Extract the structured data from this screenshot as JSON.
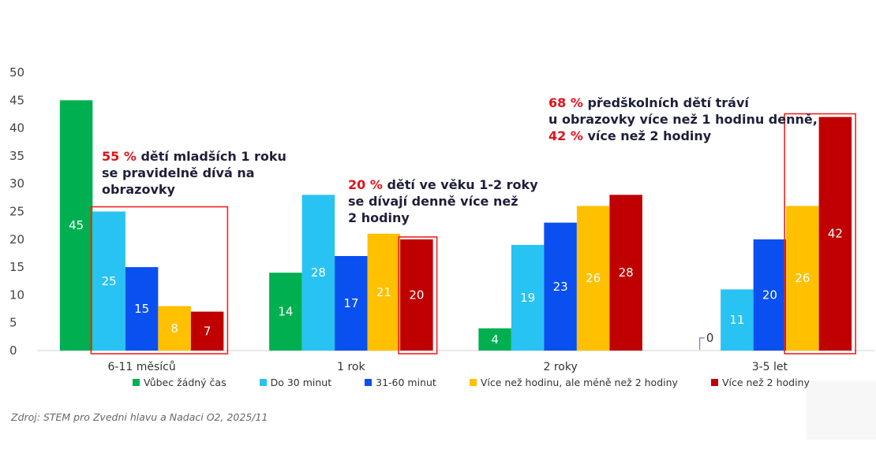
{
  "chart_data": {
    "type": "bar",
    "categories": [
      "6-11 měsíců",
      "1 rok",
      "2 roky",
      "3-5 let"
    ],
    "series": [
      {
        "name": "Vůbec žádný čas",
        "color": "#00b050",
        "values": [
          45,
          14,
          4,
          0
        ]
      },
      {
        "name": "Do 30 minut",
        "color": "#28c3f2",
        "values": [
          25,
          28,
          19,
          11
        ]
      },
      {
        "name": "31-60 minut",
        "color": "#0a4ff0",
        "values": [
          15,
          17,
          23,
          20
        ]
      },
      {
        "name": "Více než hodinu, ale méně než 2 hodiny",
        "color": "#ffc000",
        "values": [
          8,
          21,
          26,
          26
        ]
      },
      {
        "name": "Více než 2 hodiny",
        "color": "#c00000",
        "values": [
          7,
          20,
          28,
          42
        ]
      }
    ],
    "ylim": [
      0,
      50
    ],
    "yticks": [
      0,
      5,
      10,
      15,
      20,
      25,
      30,
      35,
      40,
      45,
      50
    ],
    "title": "",
    "xlabel": "",
    "ylabel": ""
  },
  "annotations": {
    "a1": {
      "highlight": "55 %",
      "line1": " dětí mladších 1 roku",
      "line2": "se pravidelně dívá na",
      "line3": "obrazovky"
    },
    "a2": {
      "highlight": "20 %",
      "line1": " dětí ve věku 1-2 roky",
      "line2": "se dívají denně více než",
      "line3": "2 hodiny"
    },
    "a3": {
      "highlight1": "68 %",
      "line1": " předškolních dětí tráví",
      "line2": "u obrazovky více než 1 hodinu denně,",
      "highlight2": "42 %",
      "line3": " více než 2 hodiny"
    }
  },
  "source": "Zdroj: STEM pro Zvedni hlavu a Nadaci O2, 2025/11"
}
